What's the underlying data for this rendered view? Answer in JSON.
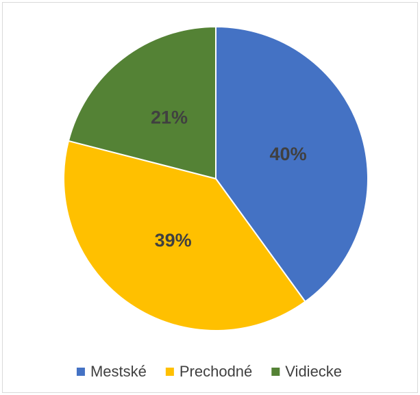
{
  "chart_data": {
    "type": "pie",
    "categories": [
      "Mestské",
      "Prechodné",
      "Vidiecke"
    ],
    "values": [
      40,
      39,
      21
    ],
    "value_labels": [
      "40%",
      "39%",
      "21%"
    ],
    "colors": [
      "#4472c4",
      "#ffc000",
      "#548235"
    ],
    "legend": "bottom"
  }
}
